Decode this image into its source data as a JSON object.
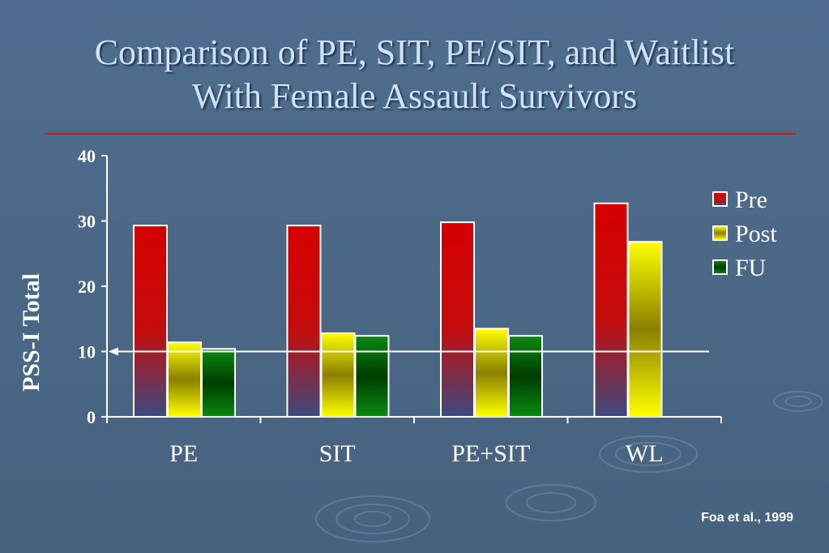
{
  "slide": {
    "title_line1": "Comparison of PE, SIT, PE/SIT, and Waitlist",
    "title_line2": "With Female Assault Survivors",
    "citation": "Foa et al., 1999"
  },
  "colors": {
    "background": "#4a6786",
    "title_text": "#cfe3ff",
    "rule": "#c41a1a",
    "pre": "#d40000",
    "post": "#f5ef00",
    "fu": "#0a7a12"
  },
  "chart_data": {
    "type": "bar",
    "categories": [
      "PE",
      "SIT",
      "PE+SIT",
      "WL"
    ],
    "series": [
      {
        "name": "Pre",
        "values": [
          29.3,
          29.3,
          29.8,
          32.7
        ]
      },
      {
        "name": "Post",
        "values": [
          11.4,
          12.8,
          13.5,
          26.8
        ]
      },
      {
        "name": "FU",
        "values": [
          10.4,
          12.4,
          12.4,
          null
        ]
      }
    ],
    "ylabel": "PSS-I Total",
    "xlabel": "",
    "ylim": [
      0,
      40
    ],
    "yticks": [
      "0",
      "10",
      "20",
      "30",
      "40"
    ],
    "reference_line": 10,
    "legend_position": "top-right",
    "grid": false
  }
}
